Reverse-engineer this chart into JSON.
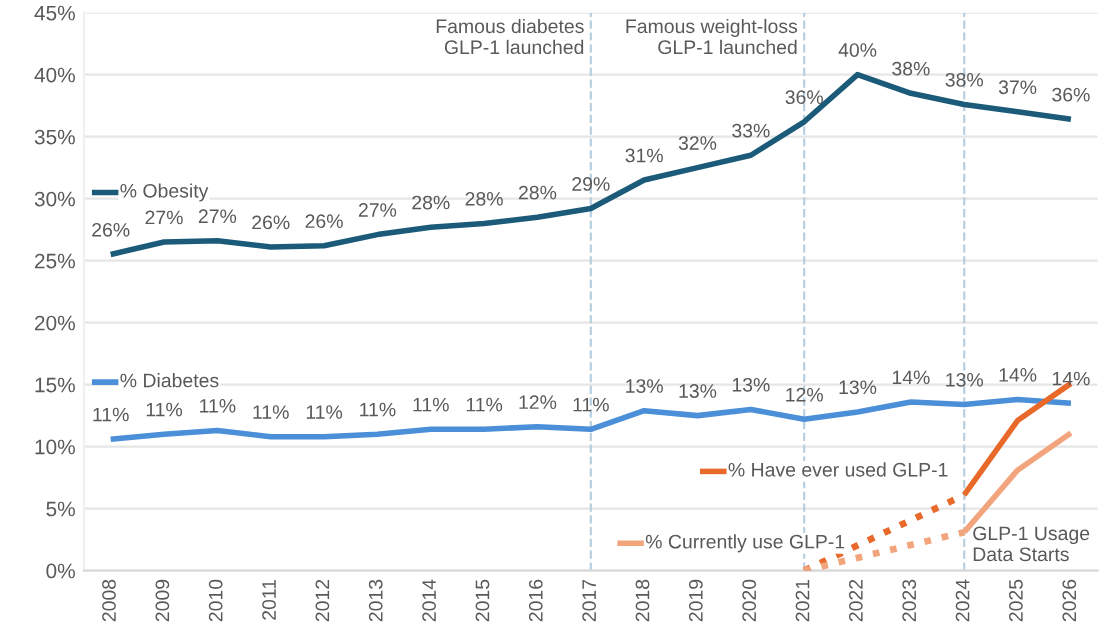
{
  "chart_data": {
    "type": "line",
    "x": [
      2008,
      2009,
      2010,
      2011,
      2012,
      2013,
      2014,
      2015,
      2016,
      2017,
      2018,
      2019,
      2020,
      2021,
      2022,
      2023,
      2024,
      2025,
      2026
    ],
    "series": [
      {
        "name": "% Obesity",
        "color": "#1b5b79",
        "values": [
          25.5,
          26.5,
          26.6,
          26.1,
          26.2,
          27.1,
          27.7,
          28.0,
          28.5,
          29.2,
          31.5,
          32.5,
          33.5,
          36.2,
          40.0,
          38.5,
          37.6,
          37.0,
          36.4
        ],
        "value_labels": [
          "26%",
          "27%",
          "27%",
          "26%",
          "26%",
          "27%",
          "28%",
          "28%",
          "28%",
          "29%",
          "31%",
          "32%",
          "33%",
          "36%",
          "40%",
          "38%",
          "38%",
          "37%",
          "36%"
        ]
      },
      {
        "name": "% Diabetes",
        "color": "#4a8fd8",
        "values": [
          10.6,
          11.0,
          11.3,
          10.8,
          10.8,
          11.0,
          11.4,
          11.4,
          11.6,
          11.4,
          12.9,
          12.5,
          13.0,
          12.2,
          12.8,
          13.6,
          13.4,
          13.8,
          13.5
        ],
        "value_labels": [
          "11%",
          "11%",
          "11%",
          "11%",
          "11%",
          "11%",
          "11%",
          "11%",
          "12%",
          "11%",
          "13%",
          "13%",
          "13%",
          "12%",
          "13%",
          "14%",
          "13%",
          "14%",
          "14%"
        ]
      },
      {
        "name": "% Have ever used GLP-1",
        "color": "#e8692a",
        "x": [
          2024,
          2025,
          2026
        ],
        "values": [
          6.1,
          12.1,
          15.1
        ],
        "line_style": "solid"
      },
      {
        "name": "% Currently use GLP-1",
        "color": "#f2a47c",
        "x": [
          2024,
          2025,
          2026
        ],
        "values": [
          3.1,
          8.1,
          11.1
        ],
        "line_style": "solid"
      },
      {
        "color": "#e8692a",
        "x": [
          2021,
          2024
        ],
        "values": [
          0,
          6.1
        ],
        "line_style": "dotted"
      },
      {
        "color": "#f2a47c",
        "x": [
          2021,
          2024
        ],
        "values": [
          0,
          3.1
        ],
        "line_style": "dotted"
      }
    ],
    "xlim": [
      2007.5,
      2026.5
    ],
    "xticks": [
      2008,
      2009,
      2010,
      2011,
      2012,
      2013,
      2014,
      2015,
      2016,
      2017,
      2018,
      2019,
      2020,
      2021,
      2022,
      2023,
      2024,
      2025,
      2026
    ],
    "ylim": [
      0,
      45
    ],
    "yticks": [
      {
        "value": 0,
        "label": "0%"
      },
      {
        "value": 5,
        "label": "5%"
      },
      {
        "value": 10,
        "label": "10%"
      },
      {
        "value": 15,
        "label": "15%"
      },
      {
        "value": 20,
        "label": "20%"
      },
      {
        "value": 25,
        "label": "25%"
      },
      {
        "value": 30,
        "label": "30%"
      },
      {
        "value": 35,
        "label": "35%"
      },
      {
        "value": 40,
        "label": "40%"
      },
      {
        "value": 45,
        "label": "45%"
      }
    ],
    "grid": "y",
    "legend": "left",
    "ref_lines": [
      {
        "axis": "x",
        "value": 2017,
        "label": "Famous diabetes\nGLP-1 launched",
        "color": "#b8cfe0",
        "line_style": "dashed"
      },
      {
        "axis": "x",
        "value": 2021,
        "label": "Famous weight-loss\nGLP-1 launched",
        "color": "#b8cfe0",
        "line_style": "dashed"
      },
      {
        "axis": "x",
        "value": 2024,
        "label": "GLP-1 Usage\nData Starts",
        "color": "#b8cfe0",
        "line_style": "dashed"
      }
    ]
  }
}
